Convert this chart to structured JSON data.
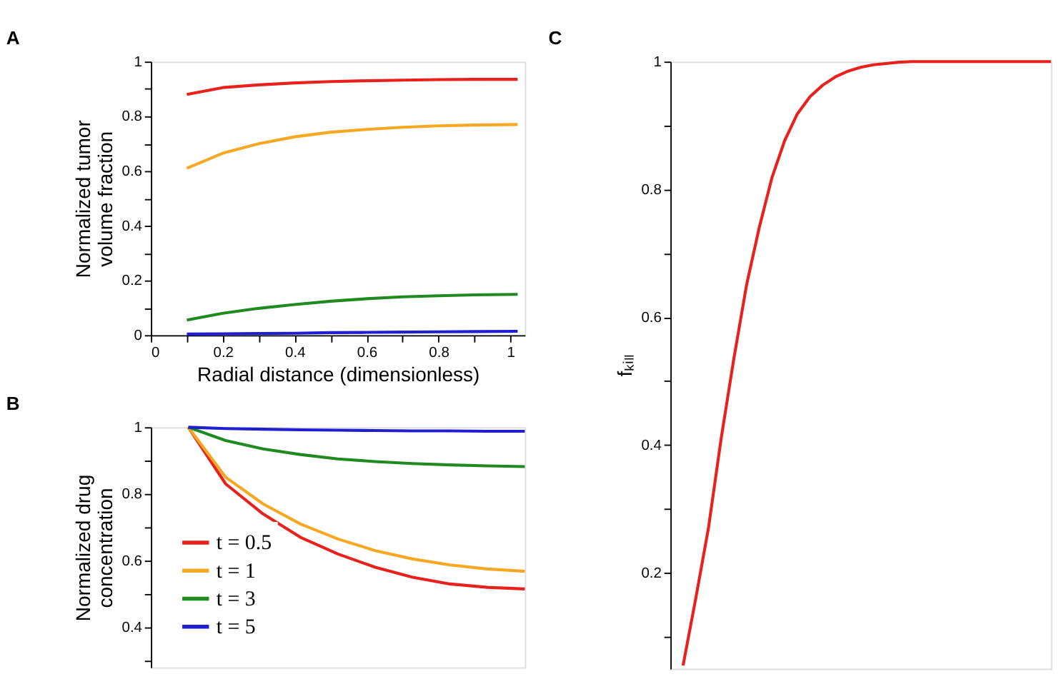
{
  "chart_data": [
    {
      "type": "line",
      "title": "A",
      "xlabel": "Radial distance (dimensionless)",
      "ylabel": [
        "Normalized tumor",
        "volume fraction"
      ],
      "x": [
        0.1,
        0.2,
        0.3,
        0.4,
        0.5,
        0.6,
        0.7,
        0.8,
        0.9,
        1.02
      ],
      "series": [
        {
          "color": "#e8211c",
          "values": [
            0.88,
            0.905,
            0.915,
            0.922,
            0.927,
            0.93,
            0.932,
            0.934,
            0.935,
            0.935
          ]
        },
        {
          "color": "#f7a823",
          "values": [
            0.61,
            0.665,
            0.7,
            0.725,
            0.742,
            0.752,
            0.76,
            0.765,
            0.768,
            0.77
          ]
        },
        {
          "color": "#1f8a1f",
          "values": [
            0.055,
            0.08,
            0.098,
            0.112,
            0.124,
            0.133,
            0.14,
            0.144,
            0.147,
            0.149
          ]
        },
        {
          "color": "#1f1fd0",
          "values": [
            0.004,
            0.005,
            0.006,
            0.007,
            0.009,
            0.01,
            0.011,
            0.012,
            0.013,
            0.014
          ]
        }
      ],
      "xlim": [
        0,
        1.04
      ],
      "xticks": [
        0,
        {
          "value": 0.1,
          "label": null
        },
        0.2,
        {
          "value": 0.3,
          "label": null
        },
        0.4,
        {
          "value": 0.5,
          "label": null
        },
        0.6,
        {
          "value": 0.7,
          "label": null
        },
        0.8,
        {
          "value": 0.9,
          "label": null
        },
        1
      ],
      "ylim": [
        0,
        1
      ],
      "yticks": [
        0,
        {
          "value": 0.1,
          "label": null
        },
        0.2,
        {
          "value": 0.3,
          "label": null
        },
        0.4,
        {
          "value": 0.5,
          "label": null
        },
        0.6,
        {
          "value": 0.7,
          "label": null
        },
        0.8,
        {
          "value": 0.9,
          "label": null
        },
        1
      ]
    },
    {
      "type": "line",
      "title": "B",
      "ylabel": [
        "Normalized drug",
        "concentration"
      ],
      "categories": [
        null,
        null,
        null,
        null,
        null,
        null,
        null,
        null,
        null,
        null,
        null
      ],
      "series": [
        {
          "name": "t = 0.5",
          "color": "#e8211c",
          "values": [
            null,
            1,
            0.83,
            0.74,
            0.67,
            0.62,
            0.58,
            0.55,
            0.53,
            0.52,
            0.515
          ]
        },
        {
          "name": "t = 1",
          "color": "#f7a823",
          "values": [
            null,
            1,
            0.85,
            0.77,
            0.71,
            0.665,
            0.63,
            0.605,
            0.587,
            0.575,
            0.568
          ]
        },
        {
          "name": "t = 3",
          "color": "#1f8a1f",
          "values": [
            null,
            1,
            0.96,
            0.935,
            0.918,
            0.905,
            0.897,
            0.891,
            0.887,
            0.884,
            0.882
          ]
        },
        {
          "name": "t = 5",
          "color": "#1f1fd0",
          "values": [
            null,
            1,
            0.996,
            0.994,
            0.992,
            0.991,
            0.99,
            0.989,
            0.989,
            0.988,
            0.988
          ]
        }
      ],
      "ylim": [
        0.28,
        1
      ],
      "yticks": [
        {
          "value": 0.3,
          "label": null
        },
        0.4,
        {
          "value": 0.5,
          "label": null
        },
        0.6,
        {
          "value": 0.7,
          "label": null
        },
        0.8,
        {
          "value": 0.9,
          "label": null
        },
        1
      ],
      "tick_labels": "y",
      "legend": "bottom left"
    },
    {
      "type": "line",
      "title": "C",
      "ylabel": "fₖᵢₗₗ",
      "categories": [
        null,
        null,
        null,
        null,
        null,
        null,
        null,
        null,
        null,
        null,
        null,
        null,
        null,
        null,
        null,
        null,
        null,
        null,
        null,
        null,
        null,
        null,
        null,
        null,
        null,
        null,
        null,
        null,
        null,
        null,
        null
      ],
      "series": [
        {
          "color": "#e8211c",
          "values": [
            null,
            0.055,
            0.16,
            0.27,
            0.41,
            0.535,
            0.65,
            0.74,
            0.818,
            0.876,
            0.918,
            0.945,
            0.963,
            0.976,
            0.985,
            0.991,
            0.995,
            0.997,
            0.999,
            1,
            1,
            1,
            1,
            1,
            1,
            1,
            1,
            1,
            1,
            1,
            1
          ]
        }
      ],
      "ylim": [
        0.05,
        1
      ],
      "yticks": [
        {
          "value": 0.1,
          "label": null
        },
        0.2,
        {
          "value": 0.3,
          "label": null
        },
        0.4,
        {
          "value": 0.5,
          "label": null
        },
        0.6,
        {
          "value": 0.7,
          "label": null
        },
        0.8,
        {
          "value": 0.9,
          "label": null
        },
        1
      ],
      "tick_labels": "y"
    }
  ]
}
